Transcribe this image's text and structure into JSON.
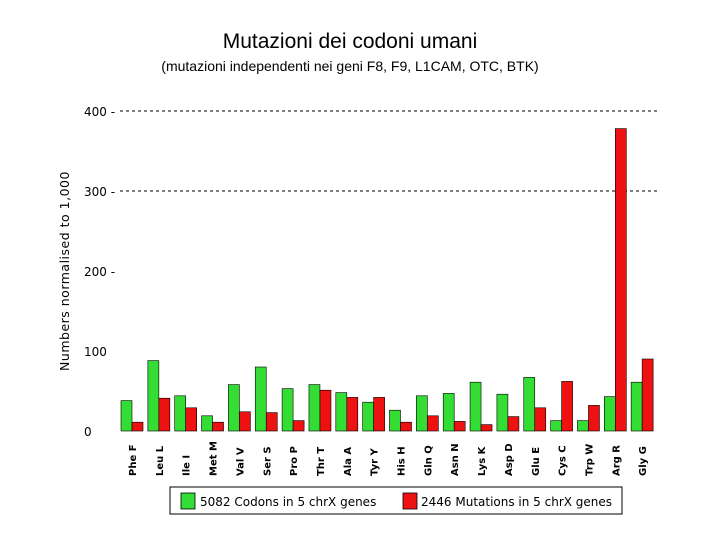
{
  "title": "Mutazioni dei codoni umani",
  "subtitle": "(mutazioni independenti nei geni F8, F9, L1CAM, OTC, BTK)",
  "chart_data": {
    "type": "bar",
    "title": "Mutazioni dei codoni umani",
    "subtitle": "(mutazioni independenti nei geni F8, F9, L1CAM, OTC, BTK)",
    "ylabel": "Numbers normalised to 1,000",
    "xlabel": "",
    "ylim": [
      0,
      400
    ],
    "yticks": [
      "0",
      "100",
      "200 -",
      "300 -",
      "400 -"
    ],
    "grid": "dashed horizontal at 300 and 400",
    "legend_position": "bottom",
    "categories": [
      "Phe F",
      "Leu L",
      "Ile I",
      "Met M",
      "Val V",
      "Ser S",
      "Pro P",
      "Thr T",
      "Ala A",
      "Tyr Y",
      "His H",
      "Gln Q",
      "Asn N",
      "Lys K",
      "Asp D",
      "Glu E",
      "Cys C",
      "Trp W",
      "Arg R",
      "Gly G"
    ],
    "series": [
      {
        "name": "5082 Codons in 5 chrX genes",
        "color": "#33dd33",
        "values": [
          38,
          88,
          44,
          19,
          58,
          80,
          53,
          58,
          48,
          36,
          26,
          44,
          47,
          61,
          46,
          67,
          13,
          13,
          43,
          61
        ]
      },
      {
        "name": "2446 Mutations in 5 chrX genes",
        "color": "#ee1111",
        "values": [
          11,
          41,
          29,
          11,
          24,
          23,
          13,
          51,
          42,
          42,
          11,
          19,
          12,
          8,
          18,
          29,
          62,
          32,
          378,
          90
        ]
      }
    ]
  }
}
